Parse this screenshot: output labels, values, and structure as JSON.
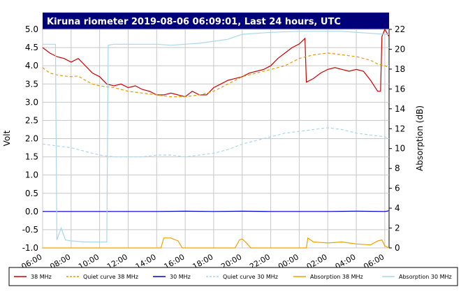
{
  "chart_data": {
    "type": "line",
    "title": "Kiruna riometer 2019-08-06 06:09:01, Last 24 hours, UTC",
    "ylabel": "Volt",
    "y2label": "Absorption (dB)",
    "ylim": [
      -1.0,
      5.0
    ],
    "y2lim": [
      0,
      22
    ],
    "xlim_hours": [
      6,
      30.3
    ],
    "yticks": [
      "5.0",
      "4.5",
      "4.0",
      "3.5",
      "3.0",
      "2.5",
      "2.0",
      "1.5",
      "1.0",
      "0.5",
      "0.0",
      "-0.5",
      "-1.0"
    ],
    "y2ticks": [
      "22",
      "20",
      "18",
      "16",
      "14",
      "12",
      "10",
      "8",
      "6",
      "4",
      "2",
      "0"
    ],
    "xticks": [
      "06:00",
      "08:00",
      "10:00",
      "12:00",
      "14:00",
      "16:00",
      "18:00",
      "20:00",
      "22:00",
      "00:00",
      "02:00",
      "04:00",
      "06:00"
    ],
    "grid": true,
    "legend_position": "bottom",
    "series": [
      {
        "name": "38 MHz",
        "color": "#cc0000",
        "dash": "solid",
        "axis": "left",
        "x": [
          6.0,
          6.5,
          7.0,
          7.5,
          8.0,
          8.5,
          9.0,
          9.5,
          10.0,
          10.5,
          11.0,
          11.5,
          12.0,
          12.5,
          13.0,
          13.5,
          14.0,
          14.5,
          15.0,
          15.5,
          16.0,
          16.5,
          17.0,
          17.5,
          18.0,
          18.5,
          19.0,
          19.5,
          20.0,
          20.5,
          21.0,
          21.5,
          22.0,
          22.5,
          23.0,
          23.5,
          24.0,
          24.4,
          24.5,
          25.0,
          25.5,
          26.0,
          26.5,
          27.0,
          27.5,
          28.0,
          28.5,
          29.0,
          29.5,
          29.7,
          29.8,
          30.0,
          30.3
        ],
        "y": [
          4.5,
          4.35,
          4.25,
          4.2,
          4.1,
          4.2,
          4.0,
          3.8,
          3.7,
          3.5,
          3.45,
          3.5,
          3.4,
          3.45,
          3.35,
          3.3,
          3.2,
          3.2,
          3.25,
          3.2,
          3.15,
          3.3,
          3.2,
          3.2,
          3.4,
          3.5,
          3.6,
          3.65,
          3.7,
          3.8,
          3.85,
          3.9,
          4.0,
          4.2,
          4.35,
          4.5,
          4.6,
          4.75,
          3.55,
          3.65,
          3.8,
          3.9,
          3.95,
          3.9,
          3.85,
          3.9,
          3.85,
          3.6,
          3.3,
          3.3,
          4.8,
          5.0,
          4.8
        ]
      },
      {
        "name": "Quiet curve 38 MHz",
        "color": "#e69a00",
        "dash": "dashed",
        "axis": "left",
        "x": [
          6.0,
          6.5,
          7.0,
          7.5,
          8.0,
          8.5,
          9.0,
          9.5,
          10.0,
          11.0,
          12.0,
          13.0,
          14.0,
          15.0,
          16.0,
          17.0,
          18.0,
          19.0,
          20.0,
          21.0,
          22.0,
          23.0,
          24.0,
          25.0,
          26.0,
          27.0,
          28.0,
          29.0,
          29.5,
          30.0,
          30.3
        ],
        "y": [
          3.95,
          3.8,
          3.75,
          3.72,
          3.7,
          3.72,
          3.6,
          3.5,
          3.45,
          3.4,
          3.3,
          3.25,
          3.2,
          3.15,
          3.15,
          3.2,
          3.3,
          3.5,
          3.7,
          3.8,
          3.9,
          4.0,
          4.2,
          4.3,
          4.35,
          4.3,
          4.25,
          4.15,
          4.05,
          4.0,
          3.95
        ]
      },
      {
        "name": "30 MHz",
        "color": "#0000cc",
        "dash": "solid",
        "axis": "left",
        "x": [
          6.0,
          10.5,
          14.0,
          16.0,
          18.0,
          20.0,
          22.0,
          24.0,
          26.0,
          28.0,
          30.0,
          30.3
        ],
        "y": [
          0.0,
          0.0,
          0.0,
          0.01,
          0.0,
          0.01,
          0.0,
          0.0,
          0.0,
          0.01,
          0.0,
          0.02
        ]
      },
      {
        "name": "Quiet curve 30 MHz",
        "color": "#a8d8e8",
        "dash": "dashed",
        "axis": "left",
        "x": [
          6.0,
          7.0,
          8.0,
          9.0,
          10.0,
          11.0,
          12.0,
          13.0,
          14.0,
          15.0,
          16.0,
          17.0,
          18.0,
          19.0,
          20.0,
          21.0,
          22.0,
          23.0,
          24.0,
          25.0,
          26.0,
          27.0,
          28.0,
          29.0,
          30.0,
          30.3
        ],
        "y": [
          1.85,
          1.8,
          1.75,
          1.65,
          1.55,
          1.5,
          1.5,
          1.5,
          1.55,
          1.55,
          1.5,
          1.55,
          1.6,
          1.7,
          1.85,
          1.95,
          2.05,
          2.15,
          2.2,
          2.25,
          2.3,
          2.25,
          2.15,
          2.1,
          2.05,
          2.0
        ]
      },
      {
        "name": "Absorption 38 MHz",
        "color": "#f0a000",
        "dash": "solid",
        "axis": "right",
        "x": [
          6.0,
          14.3,
          14.5,
          15.0,
          15.5,
          15.8,
          19.5,
          19.8,
          20.0,
          20.3,
          20.6,
          24.5,
          24.6,
          25.0,
          26.0,
          27.0,
          28.0,
          29.0,
          29.5,
          29.8,
          30.0,
          30.3
        ],
        "y": [
          0,
          0,
          1.0,
          1.0,
          0.7,
          0,
          0,
          0.8,
          0.9,
          0.5,
          0,
          0,
          1.0,
          0.6,
          0.5,
          0.6,
          0.4,
          0.3,
          0.7,
          0.8,
          0.2,
          0.0
        ]
      },
      {
        "name": "Absorption 30 MHz",
        "color": "#a8d8e8",
        "dash": "solid",
        "axis": "right",
        "x": [
          6.0,
          6.9,
          7.0,
          7.3,
          7.6,
          8.0,
          9.0,
          10.0,
          10.5,
          10.6,
          11.0,
          12.0,
          13.0,
          14.0,
          15.0,
          16.0,
          17.0,
          18.0,
          19.0,
          20.0,
          22.0,
          24.0,
          26.0,
          27.0,
          28.0,
          29.0,
          30.0,
          30.3
        ],
        "y": [
          20.5,
          20.5,
          0.8,
          2.0,
          0.8,
          0.7,
          0.6,
          0.6,
          0.6,
          20.4,
          20.5,
          20.5,
          20.5,
          20.5,
          20.4,
          20.5,
          20.6,
          20.8,
          21.0,
          21.5,
          21.7,
          21.8,
          21.8,
          21.8,
          21.7,
          21.6,
          21.5,
          21.5
        ]
      }
    ]
  }
}
